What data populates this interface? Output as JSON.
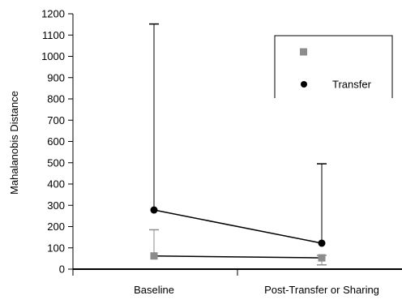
{
  "chart_data": {
    "type": "line",
    "title": "",
    "xlabel": "",
    "ylabel": "Mahalanobis Distance",
    "ylim": [
      0,
      1200
    ],
    "yticks": [
      0,
      100,
      200,
      300,
      400,
      500,
      600,
      700,
      800,
      900,
      1000,
      1100,
      1200
    ],
    "categories": [
      "Baseline",
      "Post-Transfer or Sharing"
    ],
    "grid": false,
    "legend_position": "top-right",
    "series": [
      {
        "name": "",
        "marker": "square",
        "color": "#8c8c8c",
        "values": [
          62,
          53
        ],
        "error_low": [
          null,
          20
        ],
        "error_high": [
          185,
          65
        ]
      },
      {
        "name": "Transfer",
        "marker": "circle",
        "color": "#000000",
        "values": [
          278,
          122
        ],
        "error_low": [
          null,
          null
        ],
        "error_high": [
          1152,
          495
        ]
      }
    ]
  }
}
